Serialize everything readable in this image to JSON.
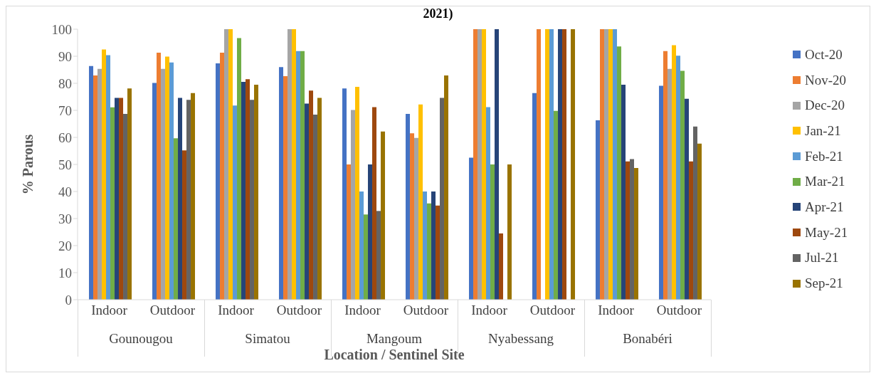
{
  "chart_data": {
    "type": "bar",
    "title": "2021)",
    "xlabel": "Location / Sentinel Site",
    "ylabel": "% Parous",
    "categories": [
      "Indoor",
      "Outdoor",
      "Indoor",
      "Outdoor",
      "Indoor",
      "Outdoor",
      "Indoor",
      "Outdoor",
      "Indoor",
      "Outdoor"
    ],
    "annotations": [
      "Gounougou",
      "Simatou",
      "Mangoum",
      "Nyabessang",
      "Bonabéri"
    ],
    "ylim": [
      0,
      100
    ],
    "yticks": [
      0,
      10,
      20,
      30,
      40,
      50,
      60,
      70,
      80,
      90,
      100
    ],
    "grid": false,
    "legend": "right",
    "series": [
      {
        "name": "Oct-20",
        "color": "#4472c4",
        "values": [
          86.4,
          80.1,
          87.4,
          86.0,
          78.1,
          68.7,
          52.5,
          76.4,
          66.3,
          79.1
        ]
      },
      {
        "name": "Nov-20",
        "color": "#ed7d31",
        "values": [
          82.9,
          91.3,
          91.3,
          82.6,
          50,
          61.5,
          100,
          100,
          100,
          91.9
        ]
      },
      {
        "name": "Dec-20",
        "color": "#a5a5a5",
        "values": [
          85.3,
          85.3,
          100,
          100,
          70.1,
          59.8,
          100,
          null,
          100,
          85.3
        ]
      },
      {
        "name": "Jan-21",
        "color": "#ffc000",
        "values": [
          92.5,
          89.9,
          100,
          100,
          78.7,
          72.2,
          100,
          100,
          100,
          94.1
        ]
      },
      {
        "name": "Feb-21",
        "color": "#5b9bd5",
        "values": [
          90.4,
          87.7,
          71.8,
          91.9,
          40,
          40,
          71.2,
          100,
          100,
          90.2
        ]
      },
      {
        "name": "Mar-21",
        "color": "#70ad47",
        "values": [
          71.1,
          59.7,
          96.7,
          91.9,
          31.5,
          35.6,
          50,
          69.8,
          93.6,
          84.6
        ]
      },
      {
        "name": "Apr-21",
        "color": "#264478",
        "values": [
          74.6,
          74.6,
          80.5,
          72.5,
          50,
          40,
          100,
          100,
          79.5,
          74.3
        ]
      },
      {
        "name": "May-21",
        "color": "#9e480e",
        "values": [
          74.6,
          55.2,
          81.5,
          77.3,
          71.2,
          34.8,
          24.5,
          100,
          51.1,
          51.1
        ]
      },
      {
        "name": "Jul-21",
        "color": "#636363",
        "values": [
          68.7,
          73.9,
          73.9,
          68.4,
          32.8,
          74.6,
          null,
          null,
          52.0,
          64.0
        ]
      },
      {
        "name": "Sep-21",
        "color": "#997300",
        "values": [
          78.1,
          76.4,
          79.5,
          74.6,
          62.2,
          82.9,
          50,
          100,
          48.7,
          57.7
        ]
      }
    ]
  }
}
